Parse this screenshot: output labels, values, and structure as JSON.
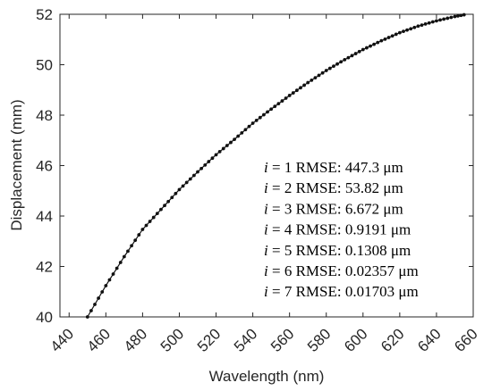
{
  "chart_data": {
    "type": "line",
    "title": "",
    "xlabel": "Wavelength (nm)",
    "ylabel": "Displacement (mm)",
    "xlim": [
      435,
      660
    ],
    "ylim": [
      40,
      52
    ],
    "xticks": [
      "440",
      "460",
      "480",
      "500",
      "520",
      "540",
      "560",
      "580",
      "600",
      "620",
      "640",
      "660"
    ],
    "yticks": [
      "40",
      "42",
      "44",
      "46",
      "48",
      "50",
      "52"
    ],
    "grid": false,
    "series": [
      {
        "x": [
          450,
          460,
          470,
          480,
          490,
          500,
          510,
          520,
          530,
          540,
          550,
          560,
          570,
          580,
          590,
          600,
          610,
          620,
          630,
          640,
          650,
          655
        ],
        "y": [
          40.0,
          41.24,
          42.39,
          43.47,
          44.26,
          45.05,
          45.75,
          46.43,
          47.04,
          47.68,
          48.24,
          48.78,
          49.29,
          49.77,
          50.2,
          50.6,
          50.95,
          51.27,
          51.53,
          51.74,
          51.91,
          51.98
        ]
      }
    ],
    "marker": "dot",
    "series_color": "#111111",
    "annotation": {
      "lines": [
        {
          "var": "i",
          "text": " = 1 RMSE: 447.3 μm"
        },
        {
          "var": "i",
          "text": " = 2 RMSE: 53.82 μm"
        },
        {
          "var": "i",
          "text": " = 3 RMSE: 6.672 μm"
        },
        {
          "var": "i",
          "text": " = 4 RMSE: 0.9191 μm"
        },
        {
          "var": "i",
          "text": " = 5 RMSE: 0.1308 μm"
        },
        {
          "var": "i",
          "text": " = 6 RMSE: 0.02357 μm"
        },
        {
          "var": "i",
          "text": " = 7 RMSE: 0.01703 μm"
        }
      ]
    }
  }
}
